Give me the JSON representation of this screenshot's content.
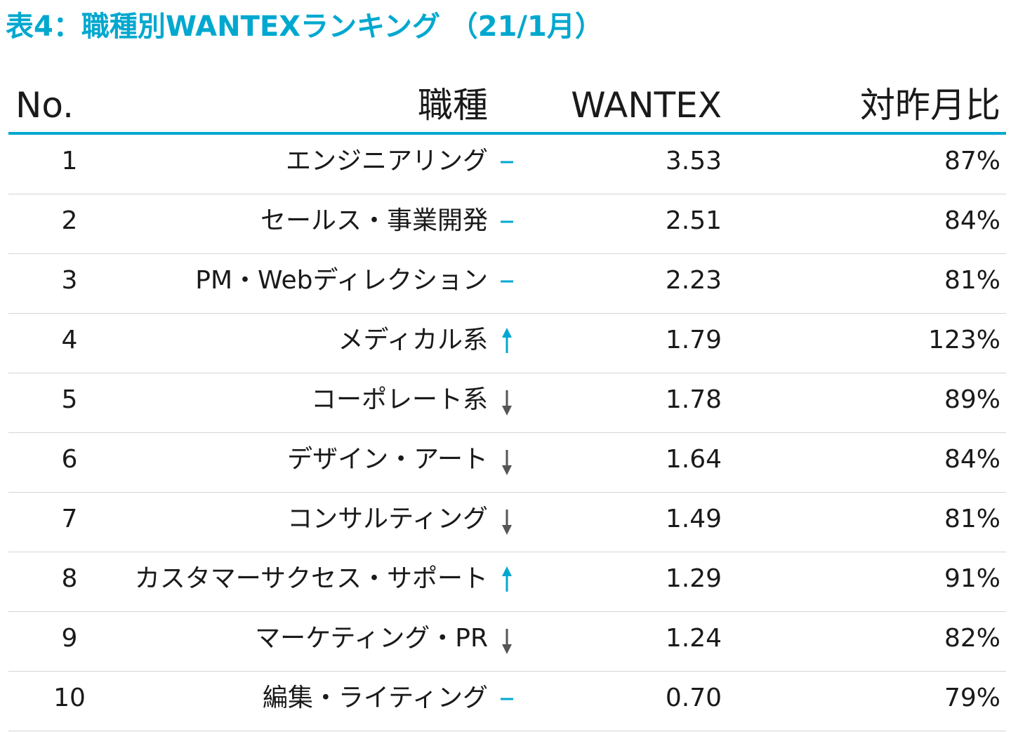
{
  "title": "表4：職種別WANTEXランキング （21/1月）",
  "accent_color": "#00a8cf",
  "down_color": "#555555",
  "chart_data": {
    "type": "table",
    "title": "表4：職種別WANTEXランキング （21/1月）",
    "columns": [
      "No.",
      "職種",
      "WANTEX",
      "対昨月比"
    ],
    "rows": [
      {
        "rank": "1",
        "job": "エンジニアリング",
        "trend": "flat",
        "wantex": "3.53",
        "yoy": "87%"
      },
      {
        "rank": "2",
        "job": "セールス・事業開発",
        "trend": "flat",
        "wantex": "2.51",
        "yoy": "84%"
      },
      {
        "rank": "3",
        "job": "PM・Webディレクション",
        "trend": "flat",
        "wantex": "2.23",
        "yoy": "81%"
      },
      {
        "rank": "4",
        "job": "メディカル系",
        "trend": "up",
        "wantex": "1.79",
        "yoy": "123%"
      },
      {
        "rank": "5",
        "job": "コーポレート系",
        "trend": "down",
        "wantex": "1.78",
        "yoy": "89%"
      },
      {
        "rank": "6",
        "job": "デザイン・アート",
        "trend": "down",
        "wantex": "1.64",
        "yoy": "84%"
      },
      {
        "rank": "7",
        "job": "コンサルティング",
        "trend": "down",
        "wantex": "1.49",
        "yoy": "81%"
      },
      {
        "rank": "8",
        "job": "カスタマーサクセス・サポート",
        "trend": "up",
        "wantex": "1.29",
        "yoy": "91%"
      },
      {
        "rank": "9",
        "job": "マーケティング・PR",
        "trend": "down",
        "wantex": "1.24",
        "yoy": "82%"
      },
      {
        "rank": "10",
        "job": "編集・ライティング",
        "trend": "flat",
        "wantex": "0.70",
        "yoy": "79%"
      }
    ]
  }
}
